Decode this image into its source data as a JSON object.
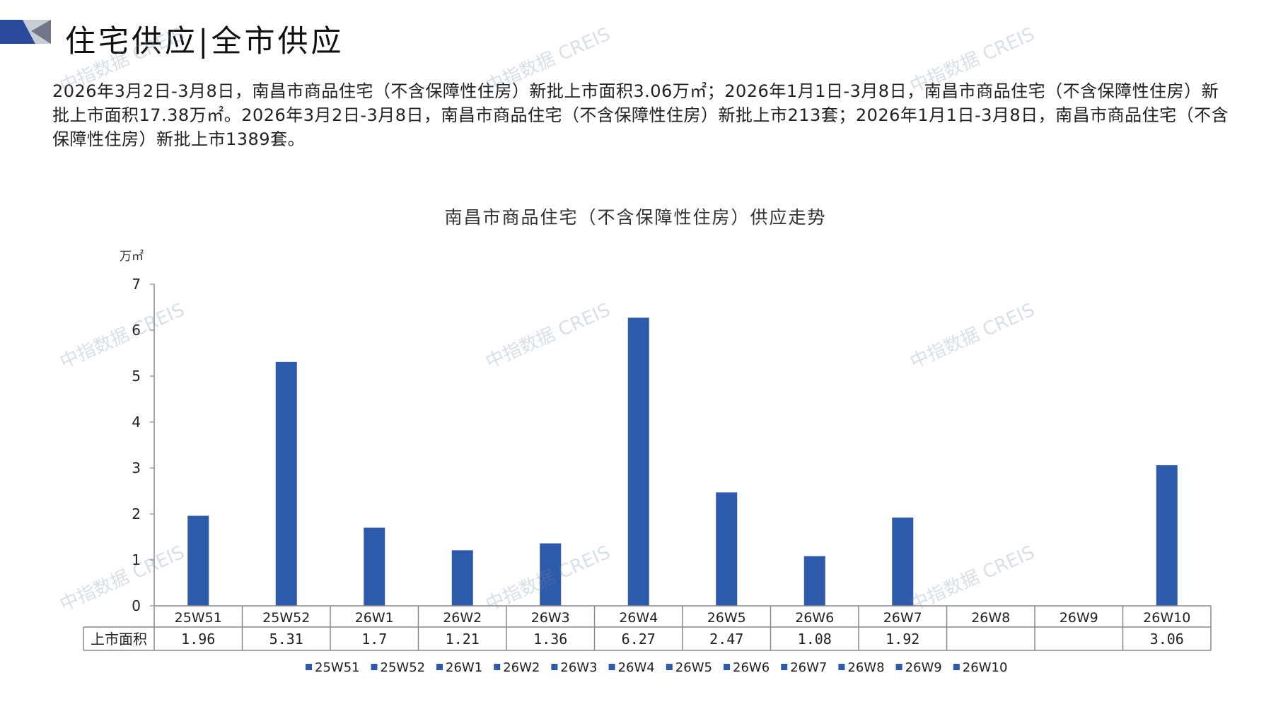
{
  "header": {
    "title": "住宅供应|全市供应"
  },
  "summary": "2026年3月2日-3月8日，南昌市商品住宅（不含保障性住房）新批上市面积3.06万㎡；2026年1月1日-3月8日，南昌市商品住宅（不含保障性住房）新批上市面积17.38万㎡。2026年3月2日-3月8日，南昌市商品住宅（不含保障性住房）新批上市213套；2026年1月1日-3月8日，南昌市商品住宅（不含保障性住房）新批上市1389套。",
  "watermark": "中指数据 CREIS",
  "colors": {
    "bar": "#2E5AAC",
    "accent_dark": "#2B4A9C",
    "axis": "#888888"
  },
  "chart_data": {
    "type": "bar",
    "title": "南昌市商品住宅（不含保障性住房）供应走势",
    "ylabel": "万㎡",
    "ylim": [
      0,
      7
    ],
    "yticks": [
      "0",
      "1",
      "2",
      "3",
      "4",
      "5",
      "6",
      "7"
    ],
    "categories": [
      "25W51",
      "25W52",
      "26W1",
      "26W2",
      "26W3",
      "26W4",
      "26W5",
      "26W6",
      "26W7",
      "26W8",
      "26W9",
      "26W10"
    ],
    "series": [
      {
        "name": "上市面积",
        "values": [
          1.96,
          5.31,
          1.7,
          1.21,
          1.36,
          6.27,
          2.47,
          1.08,
          1.92,
          null,
          null,
          3.06
        ],
        "labels": [
          "1.96",
          "5.31",
          "1.7",
          "1.21",
          "1.36",
          "6.27",
          "2.47",
          "1.08",
          "1.92",
          "",
          "",
          "3.06"
        ]
      }
    ],
    "data_table": true,
    "legend": [
      "25W51",
      "25W52",
      "26W1",
      "26W2",
      "26W3",
      "26W4",
      "26W5",
      "26W6",
      "26W7",
      "26W8",
      "26W9",
      "26W10"
    ],
    "legend_position": "bottom",
    "grid": false
  }
}
